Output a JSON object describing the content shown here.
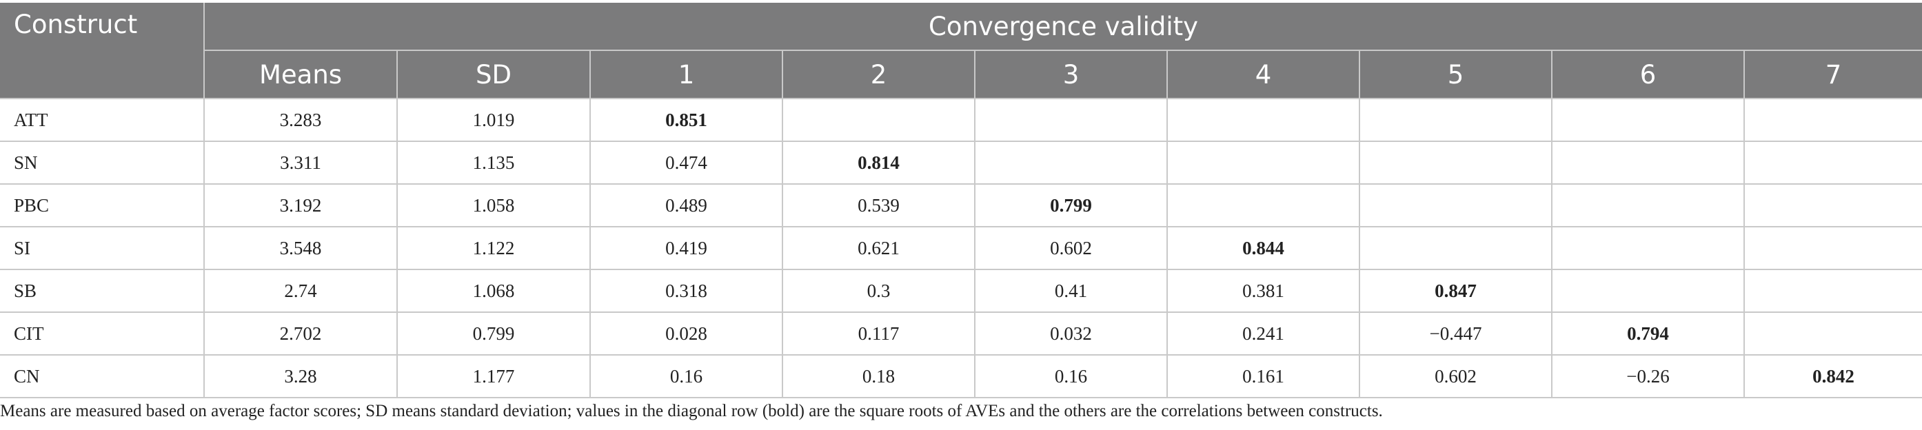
{
  "header": {
    "construct_label": "Construct",
    "group_label": "Convergence validity",
    "columns": [
      "Means",
      "SD",
      "1",
      "2",
      "3",
      "4",
      "5",
      "6",
      "7"
    ]
  },
  "rows": [
    {
      "construct": "ATT",
      "means": "3.283",
      "sd": "1.019",
      "cells": [
        "0.851",
        "",
        "",
        "",
        "",
        "",
        ""
      ]
    },
    {
      "construct": "SN",
      "means": "3.311",
      "sd": "1.135",
      "cells": [
        "0.474",
        "0.814",
        "",
        "",
        "",
        "",
        ""
      ]
    },
    {
      "construct": "PBC",
      "means": "3.192",
      "sd": "1.058",
      "cells": [
        "0.489",
        "0.539",
        "0.799",
        "",
        "",
        "",
        ""
      ]
    },
    {
      "construct": "SI",
      "means": "3.548",
      "sd": "1.122",
      "cells": [
        "0.419",
        "0.621",
        "0.602",
        "0.844",
        "",
        "",
        ""
      ]
    },
    {
      "construct": "SB",
      "means": "2.74",
      "sd": "1.068",
      "cells": [
        "0.318",
        "0.3",
        "0.41",
        "0.381",
        "0.847",
        "",
        ""
      ]
    },
    {
      "construct": "CIT",
      "means": "2.702",
      "sd": "0.799",
      "cells": [
        "0.028",
        "0.117",
        "0.032",
        "0.241",
        "−0.447",
        "0.794",
        ""
      ]
    },
    {
      "construct": "CN",
      "means": "3.28",
      "sd": "1.177",
      "cells": [
        "0.16",
        "0.18",
        "0.16",
        "0.161",
        "0.602",
        "−0.26",
        "0.842"
      ]
    }
  ],
  "footnote": "Means are measured based on average factor scores; SD means standard deviation; values in the diagonal row (bold) are the square roots of AVEs and the others are the correlations between constructs.",
  "colors": {
    "header_bg": "#7b7b7c",
    "header_text": "#ffffff",
    "grid_line": "#c9c9c9",
    "body_text": "#222222"
  }
}
